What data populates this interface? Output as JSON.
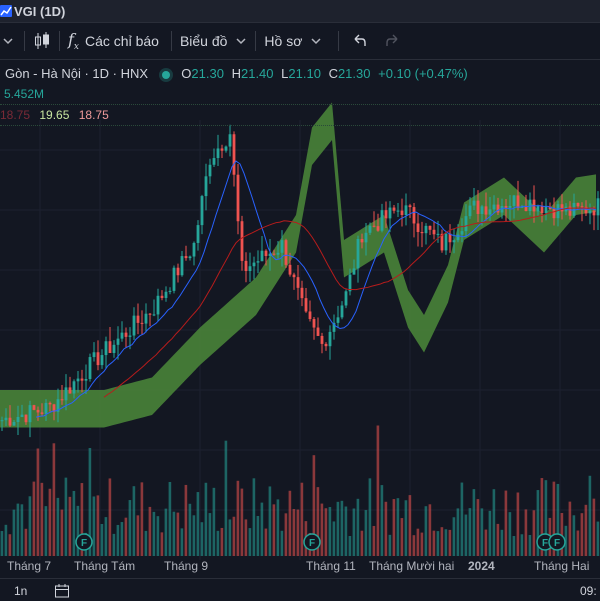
{
  "window": {
    "title": "VGI (1D)"
  },
  "toolbar": {
    "indicators_label": "Các chỉ báo",
    "charts_label": "Biểu đồ",
    "profiles_label": "Hồ sơ"
  },
  "legend": {
    "symbol": "Gòn - Hà Nội · 1D · HNX",
    "open_label": "O",
    "open": "21.30",
    "high_label": "H",
    "high": "21.40",
    "low_label": "L",
    "low": "21.10",
    "close_label": "C",
    "close": "21.30",
    "change": "+0.10 (+0.47%)",
    "volume": "5.452M",
    "ichimoku_values": [
      "18.75",
      "19.65",
      "18.75"
    ]
  },
  "bottom_bar": {
    "interval": "1n",
    "clock": "09:"
  },
  "colors": {
    "background": "#131722",
    "up": "#26a69a",
    "down": "#ef5350",
    "cloud_bull": "#4c8a3a",
    "cloud_bear": "#7a2a36",
    "tenkan": "#2962ff",
    "kijun": "#b71c1c"
  },
  "chart_data": {
    "type": "candlestick",
    "x_ticks": [
      "Tháng 7",
      "Tháng Tám",
      "Tháng 9",
      "Tháng 11",
      "Tháng Mười hai",
      "2024",
      "Tháng Hai"
    ],
    "events": [
      "F",
      "F",
      "F",
      "F"
    ],
    "price_range": [
      9,
      23
    ],
    "last": {
      "open": 21.3,
      "high": 21.4,
      "low": 21.1,
      "close": 21.3
    },
    "volume_last": "5.452M"
  }
}
